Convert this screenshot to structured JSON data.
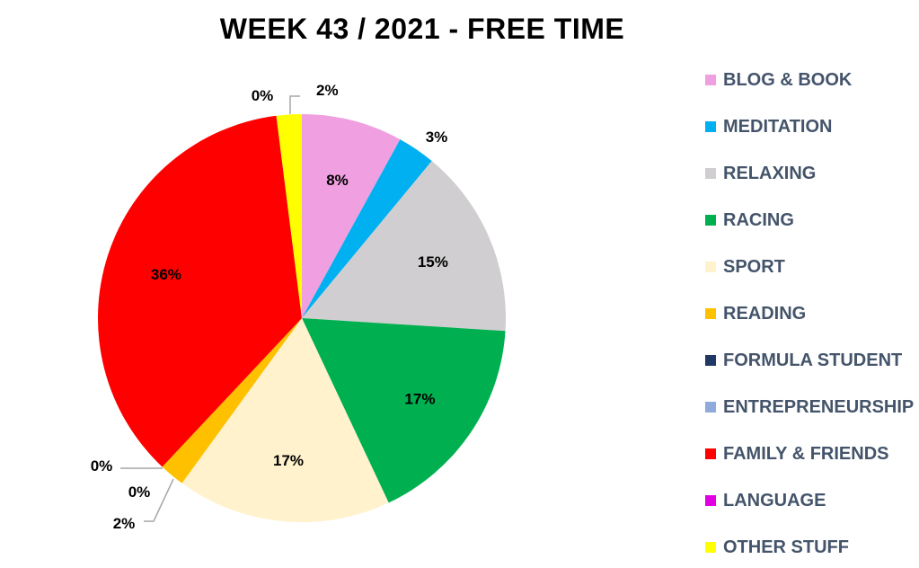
{
  "chart_data": {
    "type": "pie",
    "title": "WEEK 43 / 2021 - FREE TIME",
    "slices": [
      {
        "name": "BLOG & BOOK",
        "value": 8,
        "label": "8%",
        "color": "#f0a0e0"
      },
      {
        "name": "MEDITATION",
        "value": 3,
        "label": "3%",
        "color": "#00b0f0"
      },
      {
        "name": "RELAXING",
        "value": 15,
        "label": "15%",
        "color": "#d0ced0"
      },
      {
        "name": "RACING",
        "value": 17,
        "label": "17%",
        "color": "#00b050"
      },
      {
        "name": "SPORT",
        "value": 17,
        "label": "17%",
        "color": "#fff2cc"
      },
      {
        "name": "READING",
        "value": 2,
        "label": "2%",
        "color": "#ffc000"
      },
      {
        "name": "FORMULA STUDENT",
        "value": 0,
        "label": "0%",
        "color": "#1f3864"
      },
      {
        "name": "ENTREPRENEURSHIP",
        "value": 0,
        "label": "0%",
        "color": "#8faadc"
      },
      {
        "name": "FAMILY & FRIENDS",
        "value": 36,
        "label": "36%",
        "color": "#ff0000"
      },
      {
        "name": "LANGUAGE",
        "value": 0,
        "label": "0%",
        "color": "#e100e1"
      },
      {
        "name": "OTHER STUFF",
        "value": 2,
        "label": "2%",
        "color": "#ffff00"
      }
    ],
    "legend_position": "right"
  }
}
